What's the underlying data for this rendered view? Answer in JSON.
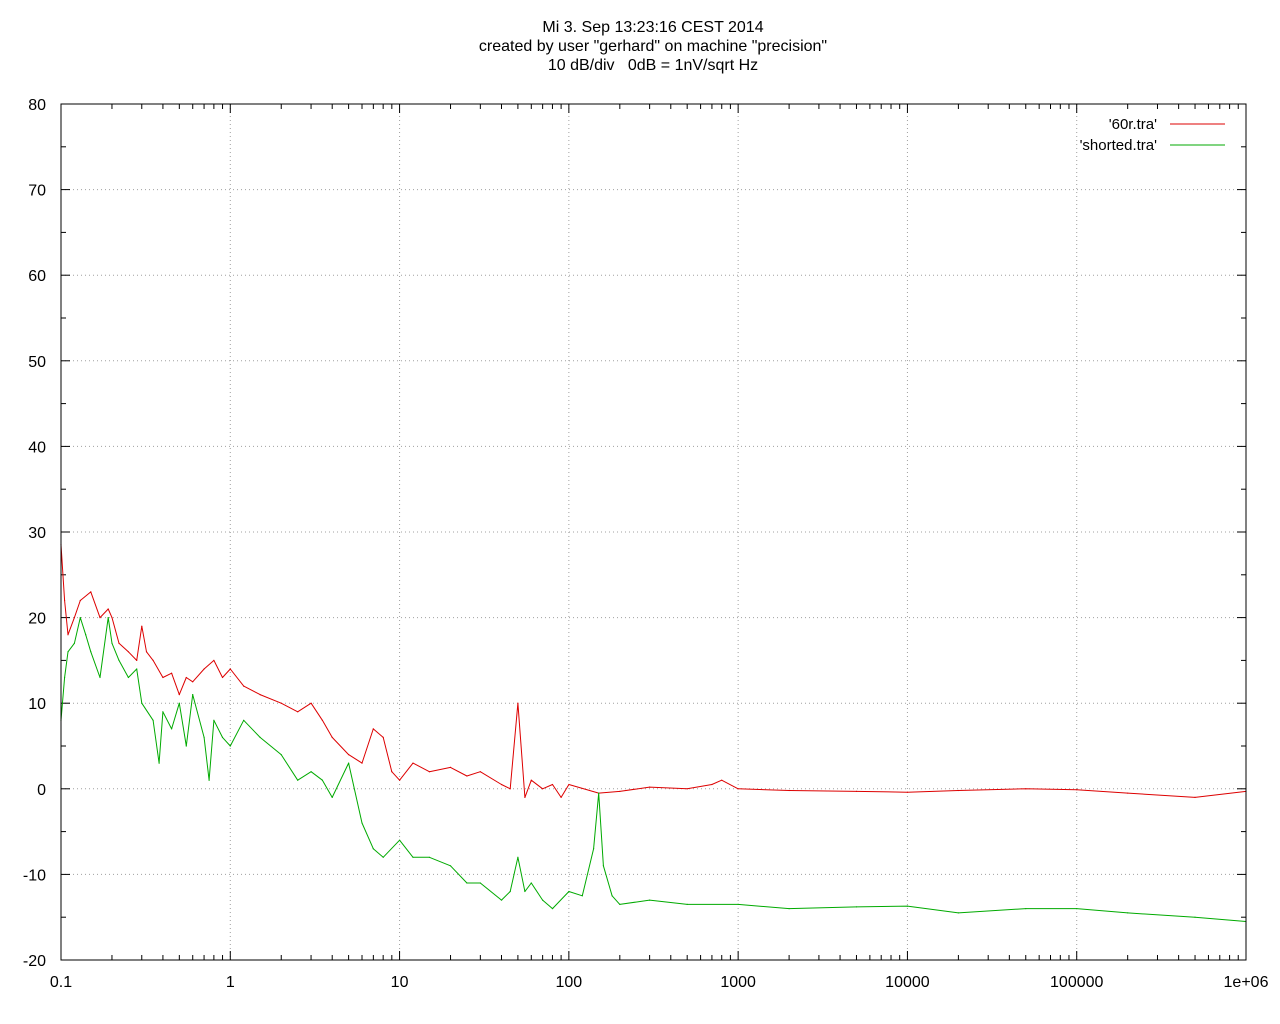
{
  "header": {
    "line1": "Mi 3. Sep 13:23:16 CEST 2014",
    "line2": "created by user \"gerhard\" on machine \"precision\"",
    "line3": "10 dB/div   0dB = 1nV/sqrt Hz"
  },
  "chart_data": {
    "type": "line",
    "title": "Mi 3. Sep 13:23:16 CEST 2014",
    "subtitle": "created by user \"gerhard\" on machine \"precision\" / 10 dB/div   0dB = 1nV/sqrt Hz",
    "xscale": "log",
    "xlim": [
      0.1,
      1000000
    ],
    "ylim": [
      -20,
      80
    ],
    "grid": true,
    "legend_position": "top-right",
    "x_tick_labels": [
      "0.1",
      "1",
      "10",
      "100",
      "1000",
      "10000",
      "100000",
      "1e+06"
    ],
    "x_tick_values": [
      0.1,
      1,
      10,
      100,
      1000,
      10000,
      100000,
      1000000
    ],
    "y_tick_labels": [
      "-20",
      "-10",
      "0",
      "10",
      "20",
      "30",
      "40",
      "50",
      "60",
      "70",
      "80"
    ],
    "y_tick_values": [
      -20,
      -10,
      0,
      10,
      20,
      30,
      40,
      50,
      60,
      70,
      80
    ],
    "series": [
      {
        "name": "'60r.tra'",
        "color": "#dd0000",
        "x": [
          0.1,
          0.105,
          0.11,
          0.12,
          0.13,
          0.15,
          0.17,
          0.19,
          0.2,
          0.22,
          0.25,
          0.28,
          0.3,
          0.32,
          0.35,
          0.4,
          0.45,
          0.5,
          0.55,
          0.6,
          0.7,
          0.8,
          0.9,
          1.0,
          1.2,
          1.5,
          2.0,
          2.5,
          3.0,
          3.5,
          4.0,
          5.0,
          6.0,
          7.0,
          8.0,
          9.0,
          10,
          12,
          15,
          20,
          25,
          30,
          40,
          45,
          50,
          55,
          60,
          70,
          80,
          90,
          100,
          150,
          200,
          300,
          500,
          700,
          800,
          1000,
          2000,
          5000,
          10000,
          20000,
          50000,
          100000,
          200000,
          500000,
          1000000
        ],
        "y": [
          28.5,
          22.0,
          18.0,
          20.0,
          22.0,
          23.0,
          20.0,
          21.0,
          20.0,
          17.0,
          16.0,
          15.0,
          19.0,
          16.0,
          15.0,
          13.0,
          13.5,
          11.0,
          13.0,
          12.5,
          14.0,
          15.0,
          13.0,
          14.0,
          12.0,
          11.0,
          10.0,
          9.0,
          10.0,
          8.0,
          6.0,
          4.0,
          3.0,
          7.0,
          6.0,
          2.0,
          1.0,
          3.0,
          2.0,
          2.5,
          1.5,
          2.0,
          0.5,
          0.0,
          10.0,
          -1.0,
          1.0,
          0.0,
          0.5,
          -1.0,
          0.5,
          -0.5,
          -0.3,
          0.2,
          0.0,
          0.5,
          1.0,
          0.0,
          -0.2,
          -0.3,
          -0.4,
          -0.2,
          0.0,
          -0.1,
          -0.5,
          -1.0,
          -0.3
        ]
      },
      {
        "name": "'shorted.tra'",
        "color": "#00aa00",
        "x": [
          0.1,
          0.105,
          0.11,
          0.12,
          0.13,
          0.14,
          0.15,
          0.17,
          0.19,
          0.2,
          0.22,
          0.25,
          0.28,
          0.3,
          0.35,
          0.38,
          0.4,
          0.45,
          0.5,
          0.55,
          0.6,
          0.7,
          0.75,
          0.8,
          0.9,
          1.0,
          1.2,
          1.5,
          2.0,
          2.5,
          3.0,
          3.5,
          4.0,
          5.0,
          6.0,
          7.0,
          8.0,
          10,
          12,
          15,
          20,
          25,
          30,
          40,
          45,
          50,
          55,
          60,
          70,
          80,
          100,
          120,
          140,
          150,
          160,
          180,
          200,
          300,
          500,
          1000,
          2000,
          5000,
          10000,
          20000,
          50000,
          100000,
          200000,
          500000,
          1000000
        ],
        "y": [
          8.0,
          13.0,
          16.0,
          17.0,
          20.0,
          18.0,
          16.0,
          13.0,
          20.0,
          17.0,
          15.0,
          13.0,
          14.0,
          10.0,
          8.0,
          3.0,
          9.0,
          7.0,
          10.0,
          5.0,
          11.0,
          6.0,
          1.0,
          8.0,
          6.0,
          5.0,
          8.0,
          6.0,
          4.0,
          1.0,
          2.0,
          1.0,
          -1.0,
          3.0,
          -4.0,
          -7.0,
          -8.0,
          -6.0,
          -8.0,
          -8.0,
          -9.0,
          -11.0,
          -11.0,
          -13.0,
          -12.0,
          -8.0,
          -12.0,
          -11.0,
          -13.0,
          -14.0,
          -12.0,
          -12.5,
          -7.0,
          -0.5,
          -9.0,
          -12.5,
          -13.5,
          -13.0,
          -13.5,
          -13.5,
          -14.0,
          -13.8,
          -13.7,
          -14.5,
          -14.0,
          -14.0,
          -14.5,
          -15.0,
          -15.5
        ]
      }
    ]
  }
}
